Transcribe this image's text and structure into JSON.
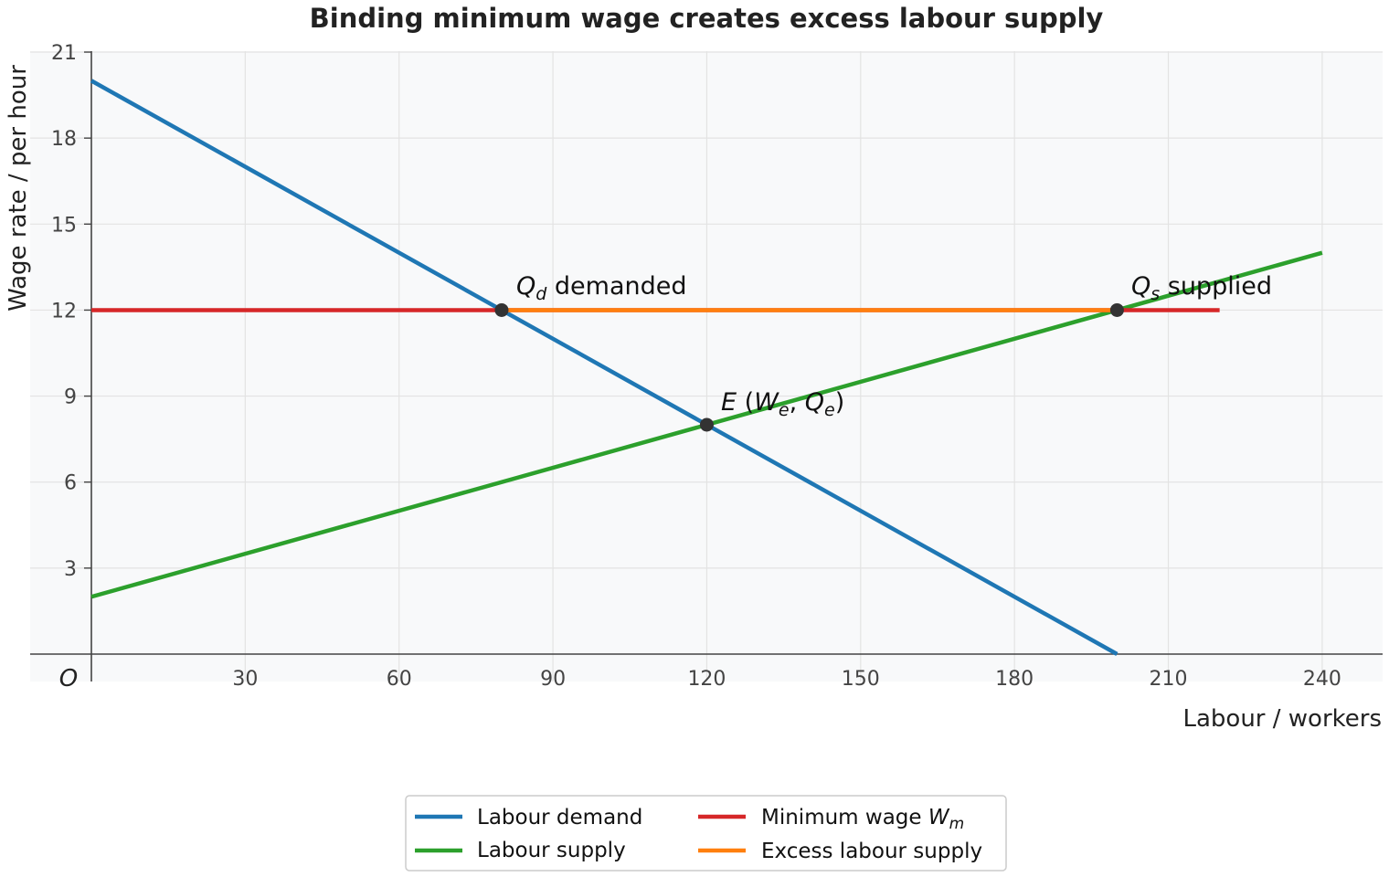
{
  "chart_data": {
    "type": "line",
    "title": "Binding minimum wage creates excess labour supply",
    "xlabel": "Labour / workers",
    "ylabel": "Wage rate / per hour",
    "origin_label": "O",
    "xlim": [
      0,
      245
    ],
    "ylim": [
      -1,
      21
    ],
    "xticks": [
      30,
      60,
      90,
      120,
      150,
      180,
      210,
      240
    ],
    "yticks": [
      3,
      6,
      9,
      12,
      15,
      18,
      21
    ],
    "grid": true,
    "legend": "bottom-center, 2 columns",
    "series": [
      {
        "name": "Labour demand",
        "color": "#1f77b4",
        "x": [
          0,
          200
        ],
        "y": [
          20,
          0
        ]
      },
      {
        "name": "Labour supply",
        "color": "#2ca02c",
        "x": [
          0,
          240
        ],
        "y": [
          2,
          14
        ]
      },
      {
        "name": "Minimum wage Wm",
        "color": "#d62728",
        "x": [
          0,
          220
        ],
        "y": [
          12,
          12
        ]
      },
      {
        "name": "Excess labour supply",
        "color": "#ff7f0e",
        "x": [
          80,
          200
        ],
        "y": [
          12,
          12
        ]
      }
    ],
    "points": [
      {
        "x": 80,
        "y": 12,
        "label": "Qd demanded"
      },
      {
        "x": 200,
        "y": 12,
        "label": "Qs supplied"
      },
      {
        "x": 120,
        "y": 8,
        "label": "E (We, Qe)"
      }
    ]
  }
}
